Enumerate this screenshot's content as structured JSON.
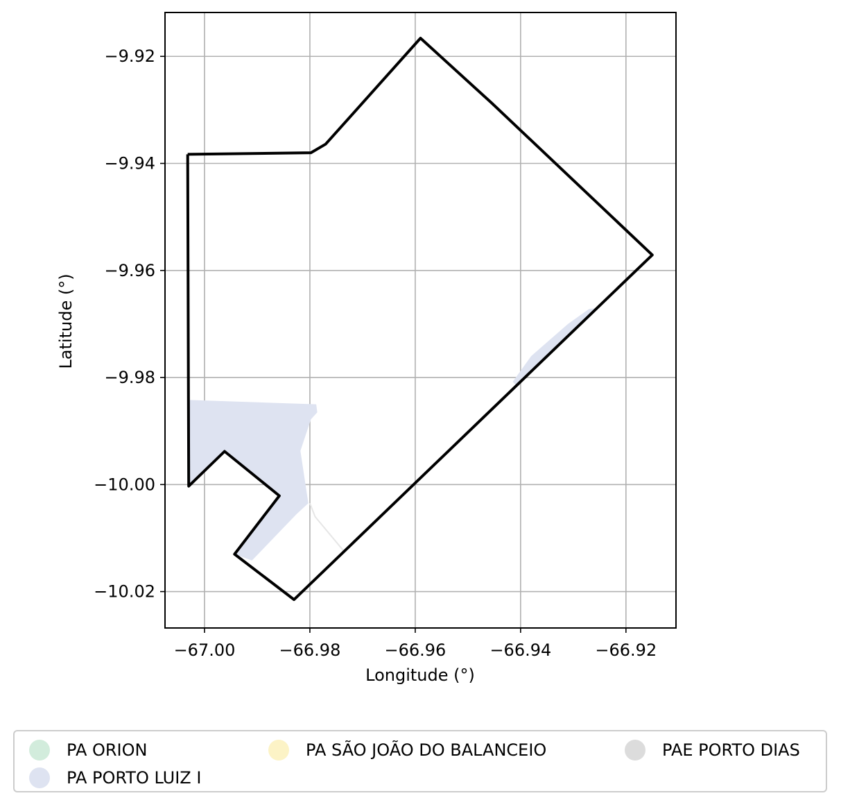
{
  "chart_data": {
    "type": "map",
    "xlabel": "Longitude (°)",
    "ylabel": "Latitude (°)",
    "xlim": [
      -67.0075,
      -66.9105
    ],
    "ylim": [
      -10.0268,
      -9.9118
    ],
    "x_ticks": [
      -67.0,
      -66.98,
      -66.96,
      -66.94,
      -66.92
    ],
    "x_tick_labels": [
      "−67.00",
      "−66.98",
      "−66.96",
      "−66.94",
      "−66.92"
    ],
    "y_ticks": [
      -9.92,
      -9.94,
      -9.96,
      -9.98,
      -10.0,
      -10.02
    ],
    "y_tick_labels": [
      "−9.92",
      "−9.94",
      "−9.96",
      "−9.98",
      "−10.00",
      "−10.02"
    ],
    "grid": true,
    "legend_placement": "below",
    "boundary": {
      "color": "#000000",
      "coords": [
        [
          -67.0032,
          -9.9383
        ],
        [
          -66.9798,
          -9.938
        ],
        [
          -66.977,
          -9.9364
        ],
        [
          -66.959,
          -9.9166
        ],
        [
          -66.9455,
          -9.9287
        ],
        [
          -66.915,
          -9.9571
        ],
        [
          -66.983,
          -10.0215
        ],
        [
          -66.9943,
          -10.013
        ],
        [
          -66.9858,
          -10.0021
        ],
        [
          -66.9962,
          -9.9938
        ],
        [
          -67.003,
          -10.0003
        ],
        [
          -67.0032,
          -9.9383
        ]
      ]
    },
    "legend": [
      {
        "label": "PA ORION",
        "color": "#d2ecdc"
      },
      {
        "label": "PA PORTO LUIZ I",
        "color": "#dee3f1"
      },
      {
        "label": "PA SÃO JOÃO DO BALANCEIO",
        "color": "#fcf3c6"
      },
      {
        "label": "PAE PORTO DIAS",
        "color": "#dcdcdc"
      }
    ],
    "regions": [
      {
        "name": "PA PORTO LUIZ I",
        "color": "#dee3f1",
        "polygons": [
          [
            [
              -67.003,
              -9.9842
            ],
            [
              -66.9788,
              -9.985
            ],
            [
              -66.9786,
              -9.9865
            ],
            [
              -66.9798,
              -9.9878
            ],
            [
              -66.9818,
              -9.9937
            ],
            [
              -66.9803,
              -10.0035
            ],
            [
              -66.9825,
              -10.0055
            ],
            [
              -66.991,
              -10.0142
            ],
            [
              -66.9943,
              -10.013
            ],
            [
              -66.9858,
              -10.0021
            ],
            [
              -66.9962,
              -9.9938
            ],
            [
              -67.003,
              -10.0003
            ]
          ],
          [
            [
              -66.9415,
              -9.9808
            ],
            [
              -66.938,
              -9.976
            ],
            [
              -66.931,
              -9.97
            ],
            [
              -66.927,
              -9.9672
            ],
            [
              -66.9252,
              -9.967
            ],
            [
              -66.939,
              -9.98
            ],
            [
              -66.9408,
              -9.9815
            ]
          ]
        ]
      }
    ],
    "faint_lines": [
      {
        "color": "#e6e6e6",
        "coords": [
          [
            -66.98,
            -10.0035
          ],
          [
            -66.979,
            -10.006
          ],
          [
            -66.9735,
            -10.0125
          ]
        ]
      }
    ]
  },
  "legend_items": [
    {
      "label": "PA ORION",
      "color": "#d2ecdc"
    },
    {
      "label": "PA PORTO LUIZ I",
      "color": "#dee3f1"
    },
    {
      "label": "PA SÃO JOÃO DO BALANCEIO",
      "color": "#fcf3c6"
    },
    {
      "label": "PAE PORTO DIAS",
      "color": "#dcdcdc"
    }
  ]
}
